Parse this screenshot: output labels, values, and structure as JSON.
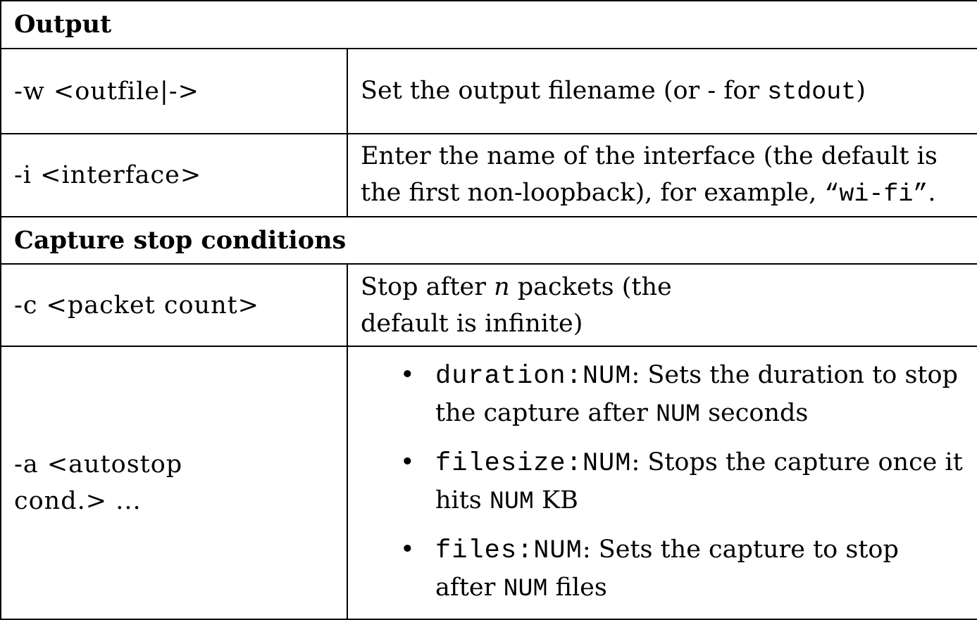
{
  "sections": {
    "output": {
      "title": "Output",
      "rows": [
        {
          "option": "-w <outfile|->",
          "desc_before": "Set the output filename (or - for ",
          "desc_code": "stdout",
          "desc_after": ")"
        },
        {
          "option": "-i <interface>",
          "desc_before": "Enter the name of the interface (the default is the first non-loopback), for example, ",
          "desc_code": "“wi-fi”",
          "desc_after": "."
        }
      ]
    },
    "capture_stop": {
      "title": "Capture stop conditions",
      "packet_count": {
        "option": "-c <packet count>",
        "desc_before": "Stop after ",
        "desc_em": "n",
        "desc_after": " packets (the default is infinite)"
      },
      "autostop": {
        "option": "-a <autostop cond.> ...",
        "items": [
          {
            "key": "duration:NUM",
            "text_a": ": Sets the duration to stop the capture after ",
            "code": "NUM",
            "text_b": " seconds"
          },
          {
            "key": "filesize:NUM",
            "text_a": ":  Stops the capture once it hits ",
            "code": "NUM",
            "text_b": " KB"
          },
          {
            "key": "files:NUM",
            "text_a": ": Sets the capture to stop after ",
            "code": "NUM",
            "text_b": " files"
          }
        ]
      }
    }
  }
}
